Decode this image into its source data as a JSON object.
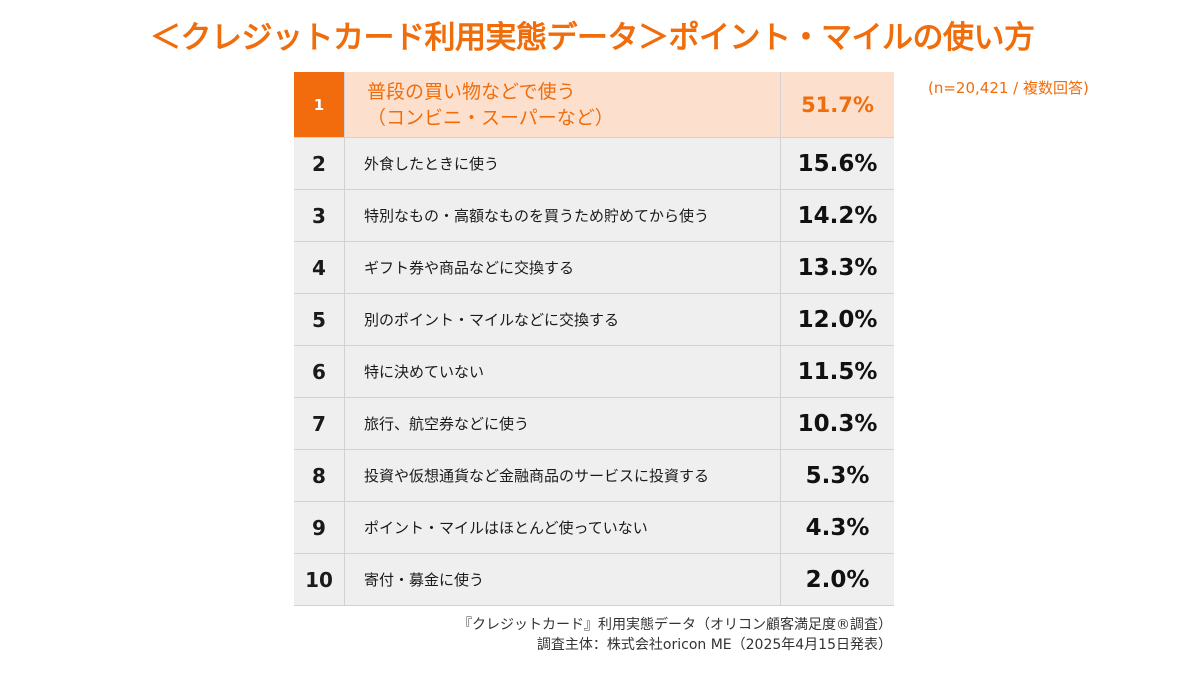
{
  "title": "＜クレジットカード利用実態データ＞ポイント・マイルの使い方",
  "sample_note": "(n=20,421 / 複数回答)",
  "source": {
    "line1": "『クレジットカード』利用実態データ（オリコン顧客満足度®調査）",
    "line2": "調査主体：株式会社oricon ME（2025年4月15日発表）"
  },
  "chart_data": {
    "type": "table",
    "title": "＜クレジットカード利用実態データ＞ポイント・マイルの使い方",
    "unit": "%",
    "rows": [
      {
        "rank": "1",
        "label": "普段の買い物などで使う",
        "sublabel": "（コンビニ・スーパーなど）",
        "value": "51.7%",
        "value_num": 51.7
      },
      {
        "rank": "2",
        "label": "外食したときに使う",
        "value": "15.6%",
        "value_num": 15.6
      },
      {
        "rank": "3",
        "label": "特別なもの・高額なものを買うため貯めてから使う",
        "value": "14.2%",
        "value_num": 14.2
      },
      {
        "rank": "4",
        "label": "ギフト券や商品などに交換する",
        "value": "13.3%",
        "value_num": 13.3
      },
      {
        "rank": "5",
        "label": "別のポイント・マイルなどに交換する",
        "value": "12.0%",
        "value_num": 12.0
      },
      {
        "rank": "6",
        "label": "特に決めていない",
        "value": "11.5%",
        "value_num": 11.5
      },
      {
        "rank": "7",
        "label": "旅行、航空券などに使う",
        "value": "10.3%",
        "value_num": 10.3
      },
      {
        "rank": "8",
        "label": "投資や仮想通貨など金融商品のサービスに投資する",
        "value": "5.3%",
        "value_num": 5.3
      },
      {
        "rank": "9",
        "label": "ポイント・マイルはほとんど使っていない",
        "value": "4.3%",
        "value_num": 4.3
      },
      {
        "rank": "10",
        "label": "寄付・募金に使う",
        "value": "2.0%",
        "value_num": 2.0
      }
    ]
  }
}
